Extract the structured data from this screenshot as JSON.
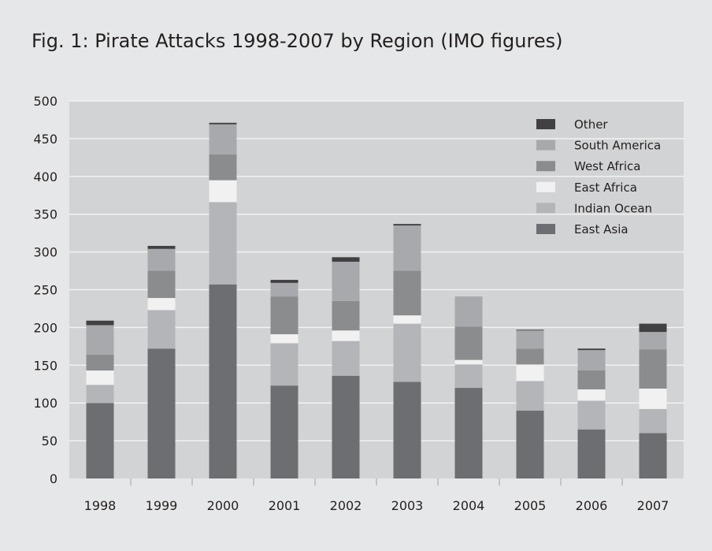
{
  "title": "Fig. 1:  Pirate Attacks 1998-2007 by Region (IMO figures)",
  "colors": {
    "background": "#e6e7e8",
    "plot_area": "#d1d3d4",
    "gridline": "#f2f2f2"
  },
  "chart_data": {
    "type": "bar",
    "stacked": true,
    "title": "Fig. 1:  Pirate Attacks 1998-2007 by Region (IMO figures)",
    "xlabel": "",
    "ylabel": "",
    "categories": [
      "1998",
      "1999",
      "2000",
      "2001",
      "2002",
      "2003",
      "2004",
      "2005",
      "2006",
      "2007"
    ],
    "ylim": [
      0,
      500
    ],
    "yticks": [
      0,
      50,
      100,
      150,
      200,
      250,
      300,
      350,
      400,
      450,
      500
    ],
    "grid": true,
    "legend_position": "top-right",
    "series": [
      {
        "name": "East Asia",
        "color": "#6d6e71",
        "values": [
          100,
          172,
          257,
          123,
          136,
          128,
          120,
          90,
          65,
          60
        ]
      },
      {
        "name": "Indian Ocean",
        "color": "#b3b5b8",
        "values": [
          24,
          51,
          109,
          56,
          46,
          77,
          31,
          39,
          38,
          32
        ]
      },
      {
        "name": "East Africa",
        "color": "#f1f1f2",
        "values": [
          19,
          16,
          29,
          12,
          14,
          11,
          6,
          22,
          15,
          27
        ]
      },
      {
        "name": "West Africa",
        "color": "#8a8c8e",
        "values": [
          21,
          36,
          34,
          50,
          39,
          59,
          44,
          21,
          25,
          52
        ]
      },
      {
        "name": "South America",
        "color": "#a7a9ac",
        "values": [
          39,
          29,
          40,
          18,
          52,
          60,
          40,
          24,
          27,
          23
        ]
      },
      {
        "name": "Other",
        "color": "#414042",
        "values": [
          6,
          4,
          2,
          4,
          6,
          2,
          0,
          1,
          2,
          11
        ]
      }
    ],
    "legend_order": [
      "Other",
      "South America",
      "West Africa",
      "East Africa",
      "Indian Ocean",
      "East Asia"
    ]
  }
}
